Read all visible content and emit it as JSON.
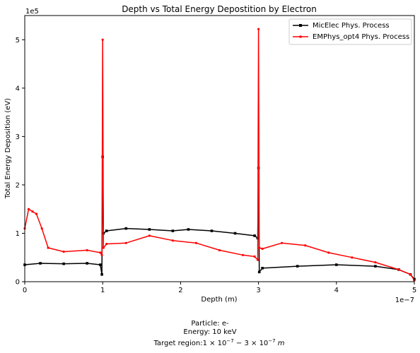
{
  "chart_data": {
    "type": "line",
    "title": "Depth vs Total Energy Depostition by Electron",
    "xlabel": "Depth (m)",
    "ylabel": "Total Energy Deposition (eV)",
    "x_multiplier_label": "1e−7",
    "y_multiplier_label": "1e5",
    "xlim": [
      0,
      5e-07
    ],
    "ylim": [
      0,
      550000
    ],
    "x_ticks": [
      0,
      1e-07,
      2e-07,
      3e-07,
      4e-07,
      5e-07
    ],
    "x_tick_labels": [
      "0",
      "1",
      "2",
      "3",
      "4",
      "5"
    ],
    "y_ticks": [
      0,
      100000,
      200000,
      300000,
      400000,
      500000
    ],
    "y_tick_labels": [
      "0",
      "1",
      "2",
      "3",
      "4",
      "5"
    ],
    "grid": false,
    "legend_position": "top-right",
    "series": [
      {
        "name": "MicElec Phys. Process",
        "color": "#000000",
        "marker": "square",
        "x": [
          0,
          2e-08,
          5e-08,
          8e-08,
          9.7e-08,
          9.9e-08,
          1e-07,
          1.01e-07,
          1.05e-07,
          1.3e-07,
          1.6e-07,
          1.9e-07,
          2.1e-07,
          2.4e-07,
          2.7e-07,
          2.95e-07,
          2.99e-07,
          3e-07,
          3.01e-07,
          3.05e-07,
          3.5e-07,
          4e-07,
          4.5e-07,
          4.8e-07,
          4.95e-07,
          5e-07
        ],
        "y": [
          35000,
          38000,
          37000,
          38000,
          35000,
          15000,
          258000,
          100000,
          105000,
          110000,
          108000,
          105000,
          108000,
          105000,
          100000,
          95000,
          90000,
          235000,
          20000,
          28000,
          32000,
          35000,
          32000,
          25000,
          15000,
          5000
        ]
      },
      {
        "name": "EMPhys_opt4 Phys. Process",
        "color": "#ff0000",
        "marker": "dot",
        "x": [
          0,
          5e-09,
          1e-08,
          1.5e-08,
          2.2e-08,
          3e-08,
          5e-08,
          8e-08,
          9.7e-08,
          9.9e-08,
          1e-07,
          1.01e-07,
          1.05e-07,
          1.3e-07,
          1.6e-07,
          1.9e-07,
          2.2e-07,
          2.5e-07,
          2.8e-07,
          2.95e-07,
          2.99e-07,
          3e-07,
          3.01e-07,
          3.05e-07,
          3.3e-07,
          3.6e-07,
          3.9e-07,
          4.2e-07,
          4.5e-07,
          4.8e-07,
          4.95e-07,
          5e-07
        ],
        "y": [
          110000,
          150000,
          145000,
          140000,
          110000,
          70000,
          62000,
          65000,
          60000,
          55000,
          500000,
          70000,
          78000,
          80000,
          95000,
          85000,
          80000,
          65000,
          55000,
          52000,
          45000,
          522000,
          70000,
          68000,
          80000,
          75000,
          60000,
          50000,
          40000,
          25000,
          15000,
          3000
        ]
      }
    ],
    "annotations": [
      "Particle: e-",
      "Energy: 10 keV"
    ],
    "target_region_prefix": "Target region:"
  }
}
